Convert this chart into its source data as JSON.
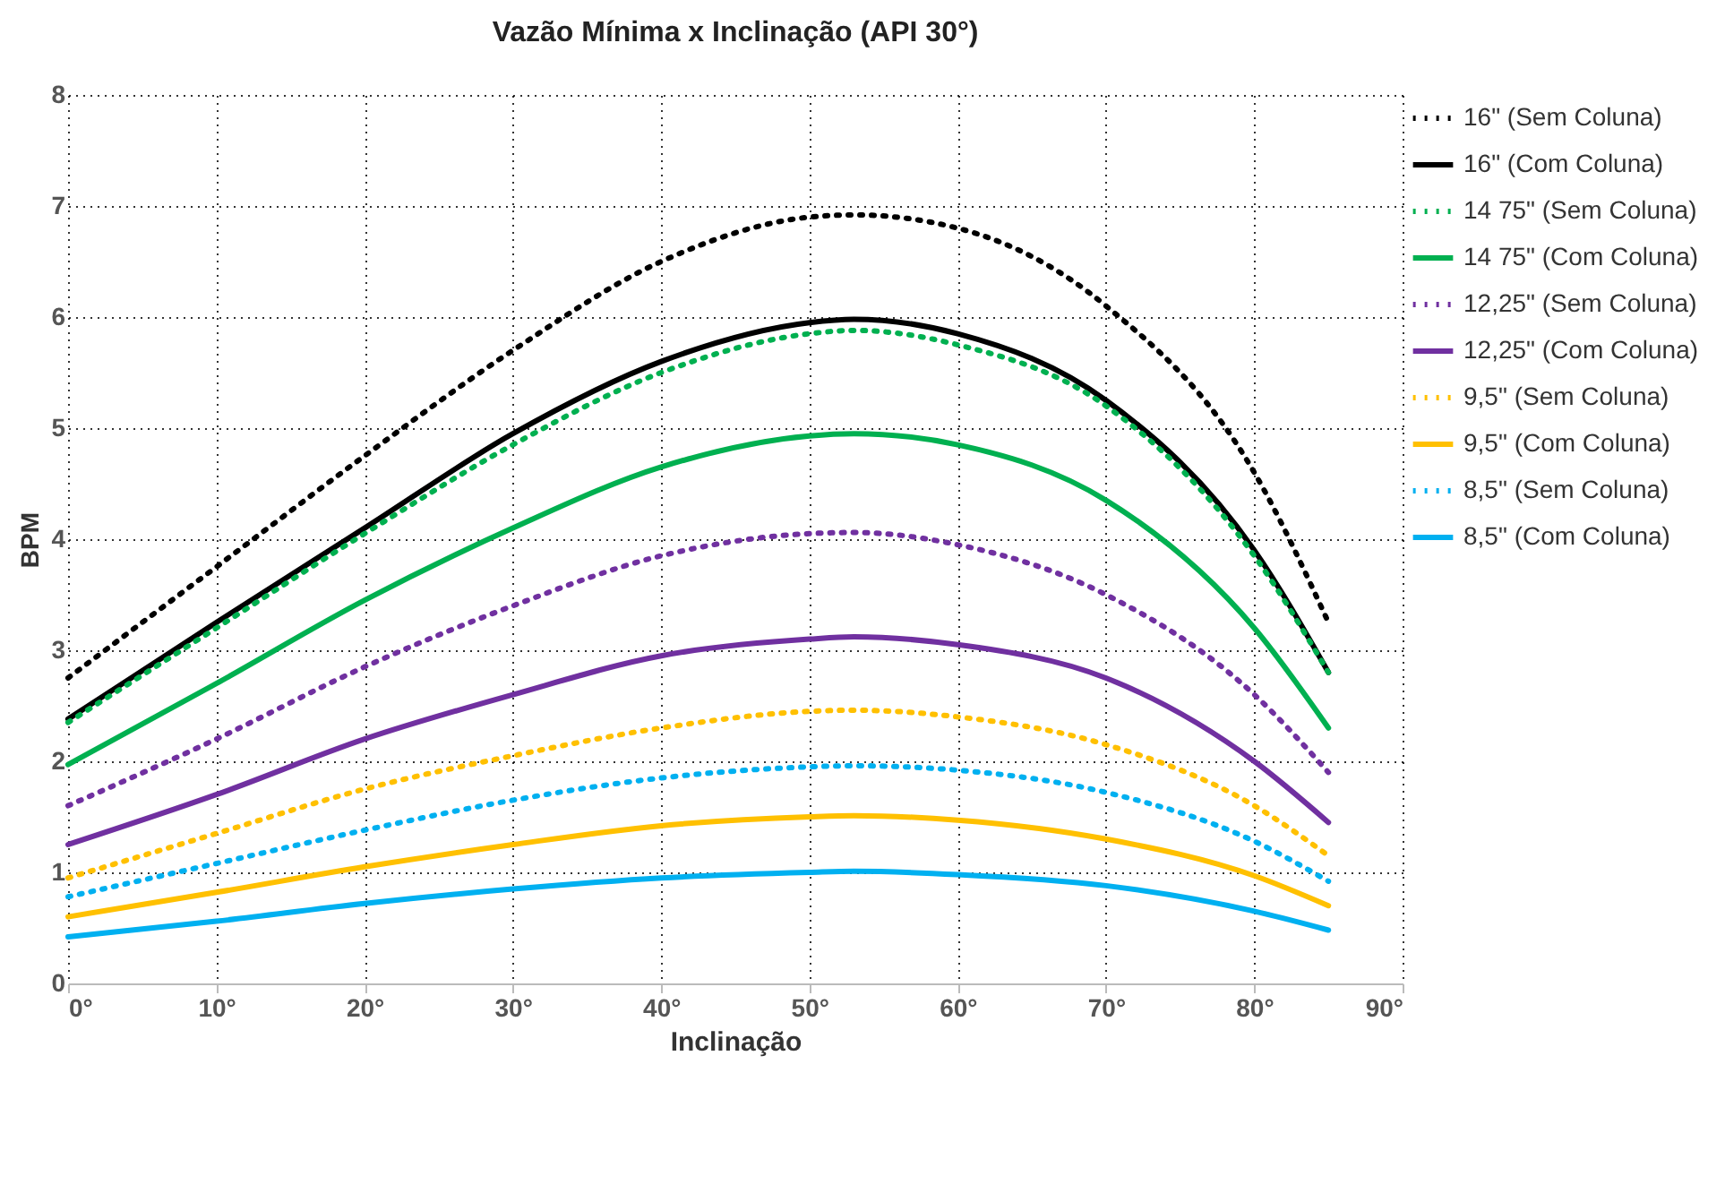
{
  "chart_data": {
    "type": "line",
    "title": "Vazão Mínima x Inclinação (API 30°)",
    "xlabel": "Inclinação",
    "ylabel": "BPM",
    "x": [
      0,
      10,
      20,
      30,
      40,
      50,
      53,
      60,
      70,
      80,
      85
    ],
    "xlim": [
      0,
      90
    ],
    "xticks": [
      {
        "value": 0,
        "label": "0°"
      },
      {
        "value": 10,
        "label": "10°"
      },
      {
        "value": 20,
        "label": "20°"
      },
      {
        "value": 30,
        "label": "30°"
      },
      {
        "value": 40,
        "label": "40°"
      },
      {
        "value": 50,
        "label": "50°"
      },
      {
        "value": 60,
        "label": "60°"
      },
      {
        "value": 70,
        "label": "70°"
      },
      {
        "value": 80,
        "label": "80°"
      },
      {
        "value": 90,
        "label": "90°"
      }
    ],
    "ylim": [
      0,
      8
    ],
    "yticks": [
      0,
      1,
      2,
      3,
      4,
      5,
      6,
      7,
      8
    ],
    "grid": true,
    "legend": "right",
    "marker": "none",
    "series": [
      {
        "name": "16\" (Sem Coluna)",
        "color": "#000000",
        "line_style": "dotted",
        "values": [
          2.75,
          3.75,
          4.75,
          5.7,
          6.5,
          6.9,
          6.92,
          6.8,
          6.1,
          4.6,
          3.25
        ]
      },
      {
        "name": "16\" (Com Coluna)",
        "color": "#000000",
        "line_style": "solid",
        "values": [
          2.38,
          3.25,
          4.1,
          4.95,
          5.6,
          5.95,
          5.98,
          5.85,
          5.25,
          3.9,
          2.8
        ]
      },
      {
        "name": "14 75\" (Sem Coluna)",
        "color": "#00b050",
        "line_style": "dotted",
        "values": [
          2.35,
          3.2,
          4.05,
          4.85,
          5.5,
          5.85,
          5.88,
          5.75,
          5.2,
          3.85,
          2.8
        ]
      },
      {
        "name": "14 75\" (Com Coluna)",
        "color": "#00b050",
        "line_style": "solid",
        "values": [
          1.97,
          2.7,
          3.45,
          4.1,
          4.65,
          4.93,
          4.95,
          4.85,
          4.35,
          3.2,
          2.3
        ]
      },
      {
        "name": "12,25\" (Sem Coluna)",
        "color": "#7030a0",
        "line_style": "dotted",
        "values": [
          1.6,
          2.2,
          2.85,
          3.4,
          3.85,
          4.05,
          4.06,
          3.95,
          3.5,
          2.6,
          1.9
        ]
      },
      {
        "name": "12,25\" (Com Coluna)",
        "color": "#7030a0",
        "line_style": "solid",
        "values": [
          1.25,
          1.7,
          2.2,
          2.6,
          2.95,
          3.1,
          3.12,
          3.05,
          2.75,
          2.0,
          1.45
        ]
      },
      {
        "name": "9,5\" (Sem Coluna)",
        "color": "#ffc000",
        "line_style": "dotted",
        "values": [
          0.95,
          1.35,
          1.75,
          2.05,
          2.3,
          2.45,
          2.46,
          2.4,
          2.15,
          1.6,
          1.15
        ]
      },
      {
        "name": "9,5\" (Com Coluna)",
        "color": "#ffc000",
        "line_style": "solid",
        "values": [
          0.6,
          0.82,
          1.05,
          1.25,
          1.42,
          1.5,
          1.51,
          1.47,
          1.3,
          0.97,
          0.7
        ]
      },
      {
        "name": "8,5\" (Sem Coluna)",
        "color": "#00b0f0",
        "line_style": "dotted",
        "values": [
          0.78,
          1.08,
          1.38,
          1.65,
          1.85,
          1.95,
          1.96,
          1.92,
          1.72,
          1.28,
          0.92
        ]
      },
      {
        "name": "8,5\" (Com Coluna)",
        "color": "#00b0f0",
        "line_style": "solid",
        "values": [
          0.42,
          0.56,
          0.72,
          0.85,
          0.95,
          1.0,
          1.01,
          0.98,
          0.88,
          0.65,
          0.48
        ]
      }
    ]
  }
}
